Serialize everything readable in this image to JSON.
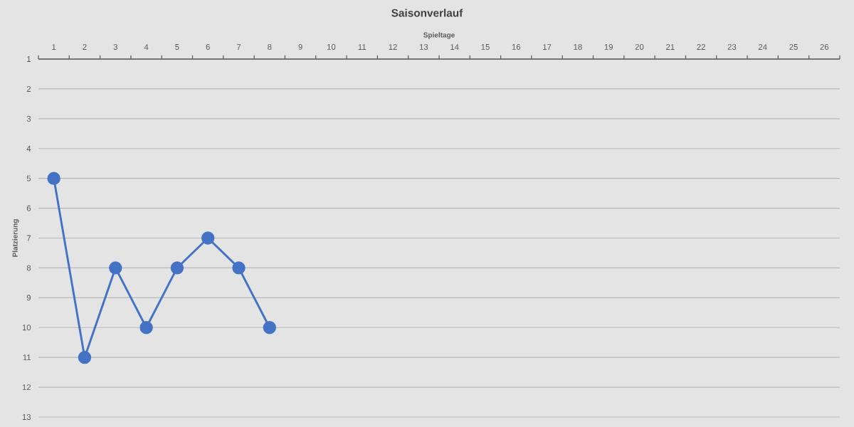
{
  "chart_data": {
    "type": "line",
    "title": "Saisonverlauf",
    "xlabel": "Spieltage",
    "ylabel": "Platzierung",
    "categories": [
      "1",
      "2",
      "3",
      "4",
      "5",
      "6",
      "7",
      "8",
      "9",
      "10",
      "11",
      "12",
      "13",
      "14",
      "15",
      "16",
      "17",
      "18",
      "19",
      "20",
      "21",
      "22",
      "23",
      "24",
      "25",
      "26"
    ],
    "values": [
      5,
      11,
      8,
      10,
      8,
      7,
      8,
      10,
      null,
      null,
      null,
      null,
      null,
      null,
      null,
      null,
      null,
      null,
      null,
      null,
      null,
      null,
      null,
      null,
      null,
      null
    ],
    "color": "#4472c4",
    "ylim": [
      13,
      1
    ],
    "yticks": [
      1,
      2,
      3,
      4,
      5,
      6,
      7,
      8,
      9,
      10,
      11,
      12,
      13
    ],
    "grid": "y",
    "marker": "circle",
    "line_style": "solid"
  }
}
